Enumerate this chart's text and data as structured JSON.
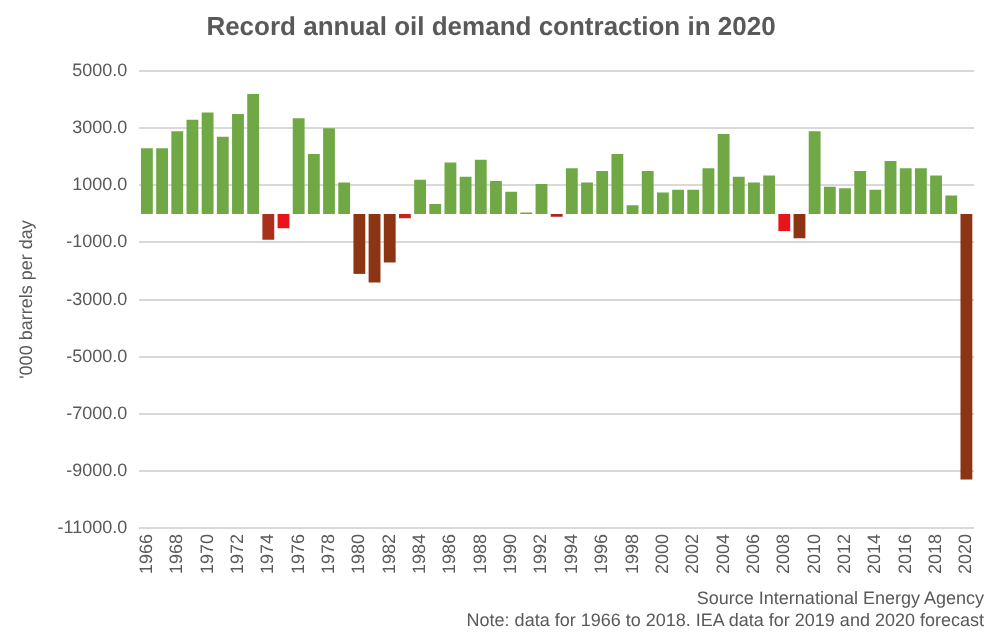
{
  "chart_data": {
    "type": "bar",
    "title": "Record annual oil demand contraction in 2020",
    "ylabel": "'000 barrels per day",
    "categories": [
      "1966",
      null,
      "1968",
      null,
      "1970",
      null,
      "1972",
      null,
      "1974",
      null,
      "1976",
      null,
      "1978",
      null,
      "1980",
      null,
      "1982",
      null,
      "1984",
      null,
      "1986",
      null,
      "1988",
      null,
      "1990",
      null,
      "1992",
      null,
      "1994",
      null,
      "1996",
      null,
      "1998",
      null,
      "2000",
      null,
      "2002",
      null,
      "2004",
      null,
      "2006",
      null,
      "2008",
      null,
      "2010",
      null,
      "2012",
      null,
      "2014",
      null,
      "2016",
      null,
      "2018",
      null,
      "2020"
    ],
    "values": [
      2300,
      2300,
      2900,
      3300,
      3550,
      2700,
      3500,
      4200,
      -900,
      -500,
      3350,
      2100,
      3000,
      1100,
      -2100,
      -2400,
      -1700,
      -150,
      1200,
      350,
      1800,
      1300,
      1900,
      1150,
      780,
      50,
      1050,
      -100,
      1600,
      1100,
      1500,
      2100,
      300,
      1500,
      750,
      850,
      850,
      1600,
      2800,
      1300,
      1100,
      1350,
      -600,
      -850,
      2900,
      950,
      900,
      1500,
      850,
      1850,
      1600,
      1600,
      1350,
      650,
      -9300
    ],
    "colors": [
      "#70a845",
      "#70a845",
      "#70a845",
      "#70a845",
      "#70a845",
      "#70a845",
      "#70a845",
      "#70a845",
      "#a8301c",
      "#e8141c",
      "#70a845",
      "#70a845",
      "#70a845",
      "#70a845",
      "#8c3414",
      "#8c3414",
      "#8c3414",
      "#c8241c",
      "#70a845",
      "#70a845",
      "#70a845",
      "#70a845",
      "#70a845",
      "#70a845",
      "#70a845",
      "#70a845",
      "#70a845",
      "#a82424",
      "#70a845",
      "#70a845",
      "#70a845",
      "#70a845",
      "#70a845",
      "#70a845",
      "#70a845",
      "#70a845",
      "#70a845",
      "#70a845",
      "#70a845",
      "#70a845",
      "#70a845",
      "#70a845",
      "#e8141c",
      "#8c3414",
      "#70a845",
      "#70a845",
      "#70a845",
      "#70a845",
      "#70a845",
      "#70a845",
      "#70a845",
      "#70a845",
      "#70a845",
      "#70a845",
      "#8c3414"
    ],
    "ylim": [
      -11000,
      5000
    ],
    "yticks": [
      {
        "value": 5000,
        "label": "5000.0"
      },
      {
        "value": 3000,
        "label": "3000.0"
      },
      {
        "value": 1000,
        "label": "1000.0"
      },
      {
        "value": -1000,
        "label": "-1000.0"
      },
      {
        "value": -3000,
        "label": "-3000.0"
      },
      {
        "value": -5000,
        "label": "-5000.0"
      },
      {
        "value": -7000,
        "label": "-7000.0"
      },
      {
        "value": -9000,
        "label": "-9000.0"
      },
      {
        "value": -11000,
        "label": "-11000.0"
      }
    ],
    "grid": "y",
    "legend": false,
    "annotations": [
      "Source International Energy Agency",
      "Note: data for 1966 to 2018. IEA data for 2019 and 2020 forecast"
    ]
  }
}
